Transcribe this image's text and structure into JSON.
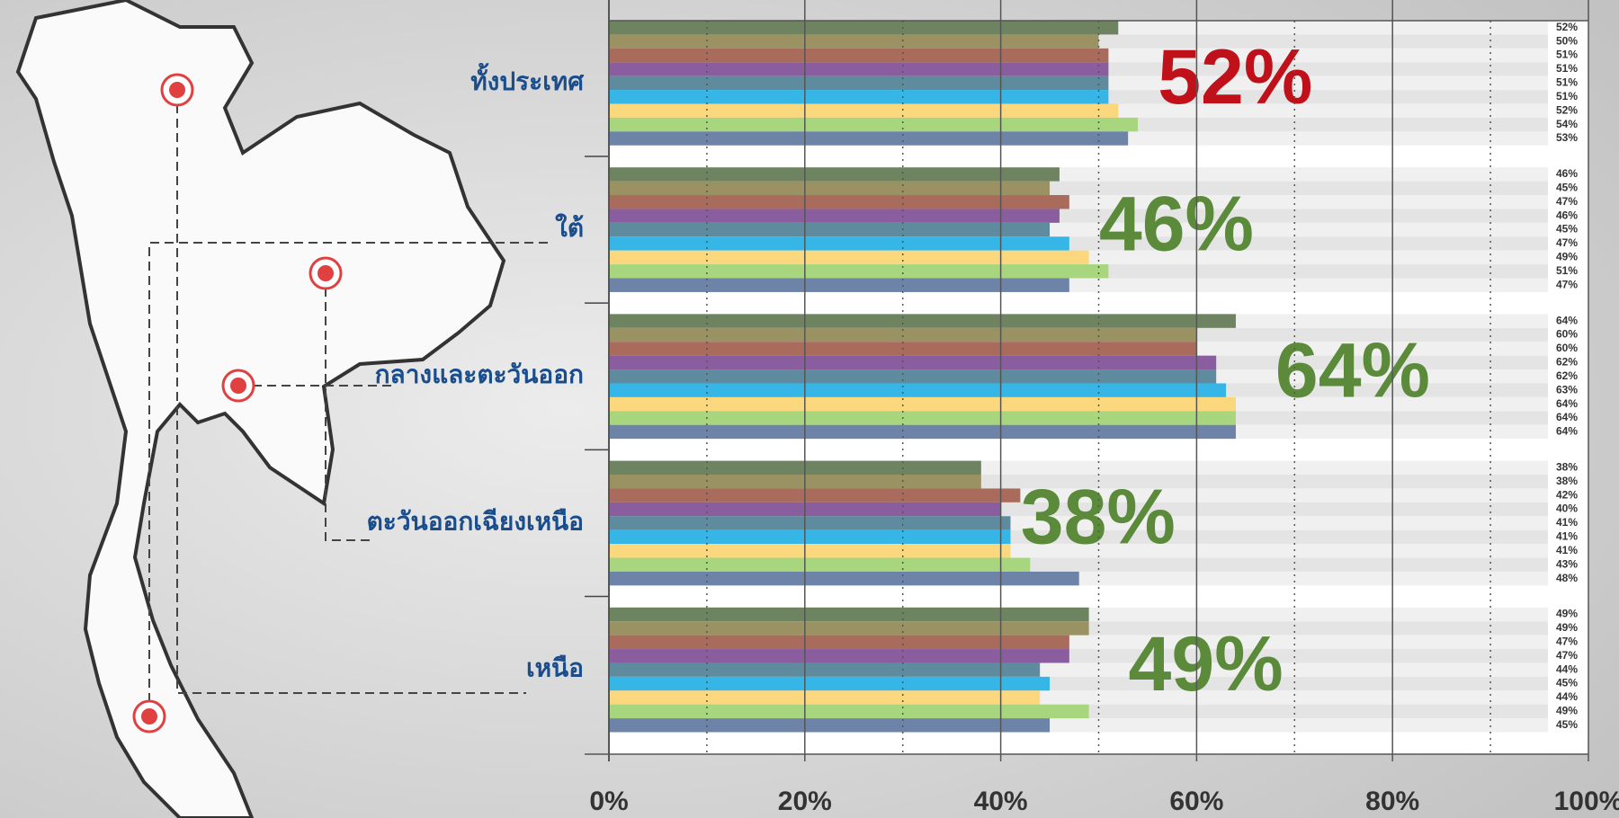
{
  "chart_data": {
    "type": "bar",
    "orientation": "horizontal",
    "categories": [
      "ทั้งประเทศ",
      "ใต้",
      "กลางและตะวันออก",
      "ตะวันออกเฉียงเหนือ",
      "เหนือ"
    ],
    "series": [
      {
        "color": "#6e8460",
        "values": [
          52,
          46,
          64,
          38,
          49
        ],
        "value_labels": [
          "52%",
          "46%",
          "64%",
          "38%",
          "49%"
        ]
      },
      {
        "color": "#9a9263",
        "values": [
          50,
          45,
          60,
          38,
          49
        ],
        "value_labels": [
          "50%",
          "45%",
          "60%",
          "38%",
          "49%"
        ]
      },
      {
        "color": "#a86b5c",
        "values": [
          51,
          47,
          60,
          42,
          47
        ],
        "value_labels": [
          "51%",
          "47%",
          "60%",
          "42%",
          "47%"
        ]
      },
      {
        "color": "#8a5e9e",
        "values": [
          51,
          46,
          62,
          40,
          47
        ],
        "value_labels": [
          "51%",
          "46%",
          "62%",
          "40%",
          "47%"
        ]
      },
      {
        "color": "#5e8c9e",
        "values": [
          51,
          45,
          62,
          41,
          44
        ],
        "value_labels": [
          "51%",
          "45%",
          "62%",
          "41%",
          "44%"
        ]
      },
      {
        "color": "#35b6e6",
        "values": [
          51,
          47,
          63,
          41,
          45
        ],
        "value_labels": [
          "51%",
          "47%",
          "63%",
          "41%",
          "45%"
        ]
      },
      {
        "color": "#fbd77e",
        "values": [
          52,
          49,
          64,
          41,
          44
        ],
        "value_labels": [
          "52%",
          "49%",
          "64%",
          "41%",
          "44%"
        ]
      },
      {
        "color": "#a8d67e",
        "values": [
          54,
          51,
          64,
          43,
          49
        ],
        "value_labels": [
          "54%",
          "51%",
          "64%",
          "43%",
          "49%"
        ]
      },
      {
        "color": "#6d83a8",
        "values": [
          53,
          47,
          64,
          48,
          45
        ],
        "value_labels": [
          "53%",
          "47%",
          "64%",
          "48%",
          "45%"
        ]
      }
    ],
    "summary_values": [
      52,
      46,
      64,
      38,
      49
    ],
    "summary_labels": [
      "52%",
      "46%",
      "64%",
      "38%",
      "49%"
    ],
    "summary_colors": [
      "#c0101a",
      "#5a8a3a",
      "#5a8a3a",
      "#5a8a3a",
      "#5a8a3a"
    ],
    "xlim": [
      0,
      100
    ],
    "xticks": [
      {
        "value": 0,
        "label": "0%"
      },
      {
        "value": 20,
        "label": "20%"
      },
      {
        "value": 40,
        "label": "40%"
      },
      {
        "value": 60,
        "label": "60%"
      },
      {
        "value": 80,
        "label": "80%"
      },
      {
        "value": 100,
        "label": "100%"
      }
    ],
    "minor_xticks": [
      10,
      30,
      50,
      70,
      90
    ],
    "grid": true
  }
}
